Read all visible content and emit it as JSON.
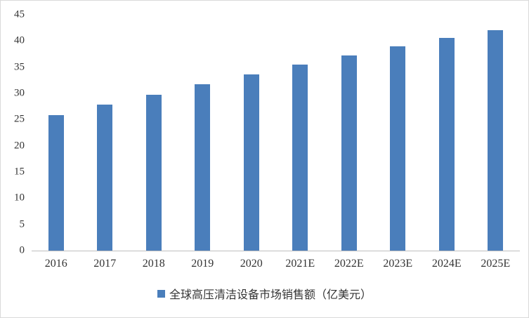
{
  "chart_data": {
    "type": "bar",
    "title": "",
    "categories": [
      "2016",
      "2017",
      "2018",
      "2019",
      "2020",
      "2021E",
      "2022E",
      "2023E",
      "2024E",
      "2025E"
    ],
    "values": [
      25.8,
      27.9,
      29.8,
      31.8,
      33.6,
      35.5,
      37.3,
      39.0,
      40.6,
      42.0
    ],
    "ylim": [
      0,
      45
    ],
    "yticks": [
      0,
      5,
      10,
      15,
      20,
      25,
      30,
      35,
      40,
      45
    ],
    "grid": false,
    "legend_position": "bottom",
    "legend_label": "全球高压清洁设备市场销售额（亿美元）",
    "bar_color": "#4A7EBB"
  }
}
